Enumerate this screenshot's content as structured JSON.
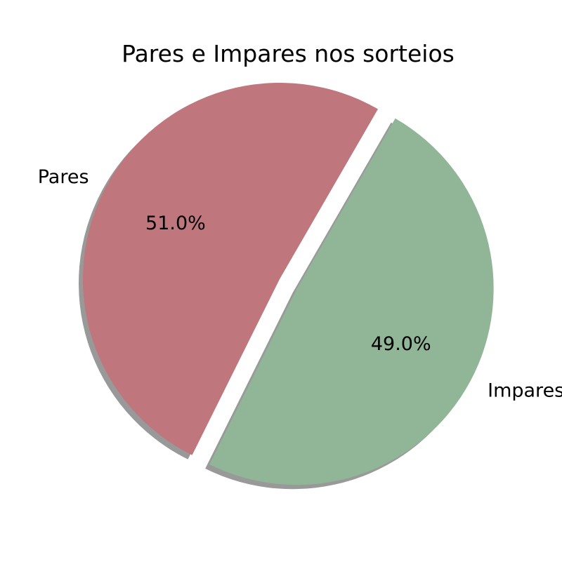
{
  "chart_data": {
    "type": "pie",
    "title": "Pares e Impares nos sorteios",
    "slices": [
      {
        "label": "Pares",
        "value": 51.0,
        "pct_label": "51.0%",
        "color": "#bf767c",
        "exploded": false
      },
      {
        "label": "Impares",
        "value": 49.0,
        "pct_label": "49.0%",
        "color": "#91b597",
        "exploded": true
      }
    ],
    "shadow": true,
    "shadow_color": "#999999"
  }
}
